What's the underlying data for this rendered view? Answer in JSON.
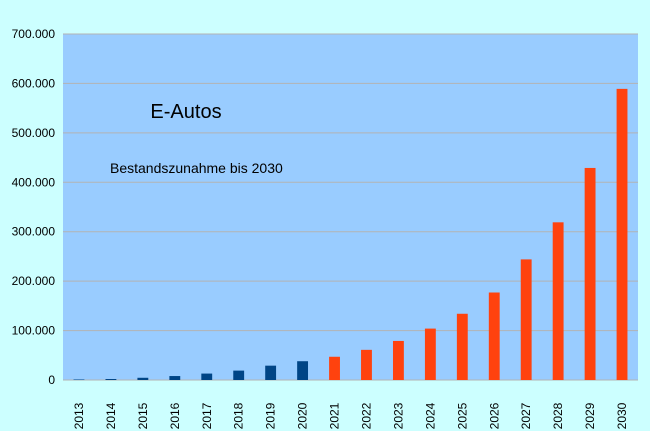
{
  "colors": {
    "page_background": "#CCFFFF",
    "plot_background": "#99CCFF",
    "gridline": "#B3B3B3",
    "actual_bar": "#004586",
    "forecast_bar": "#FF420E",
    "text": "#000000"
  },
  "chart_data": {
    "type": "bar",
    "title": "E-Autos",
    "annotation": "Bestandszunahme bis 2030",
    "xlabel": "",
    "ylabel": "",
    "ylim": [
      0,
      700000
    ],
    "yticks": [
      0,
      100000,
      200000,
      300000,
      400000,
      500000,
      600000,
      700000
    ],
    "ytick_labels": [
      "0",
      "100.000",
      "200.000",
      "300.000",
      "400.000",
      "500.000",
      "600.000",
      "700.000"
    ],
    "grid": true,
    "legend": "none",
    "categories": [
      "2013",
      "2014",
      "2015",
      "2016",
      "2017",
      "2018",
      "2019",
      "2020",
      "2021",
      "2022",
      "2023",
      "2024",
      "2025",
      "2026",
      "2027",
      "2028",
      "2029",
      "2030"
    ],
    "series": [
      {
        "color": "#004586",
        "values": [
          1000,
          2000,
          4500,
          8000,
          13000,
          19000,
          29000,
          38000,
          null,
          null,
          null,
          null,
          null,
          null,
          null,
          null,
          null,
          null
        ]
      },
      {
        "color": "#FF420E",
        "values": [
          null,
          null,
          null,
          null,
          null,
          null,
          null,
          null,
          47000,
          61000,
          79000,
          104000,
          134000,
          177000,
          244000,
          319000,
          429000,
          589000
        ]
      }
    ]
  }
}
